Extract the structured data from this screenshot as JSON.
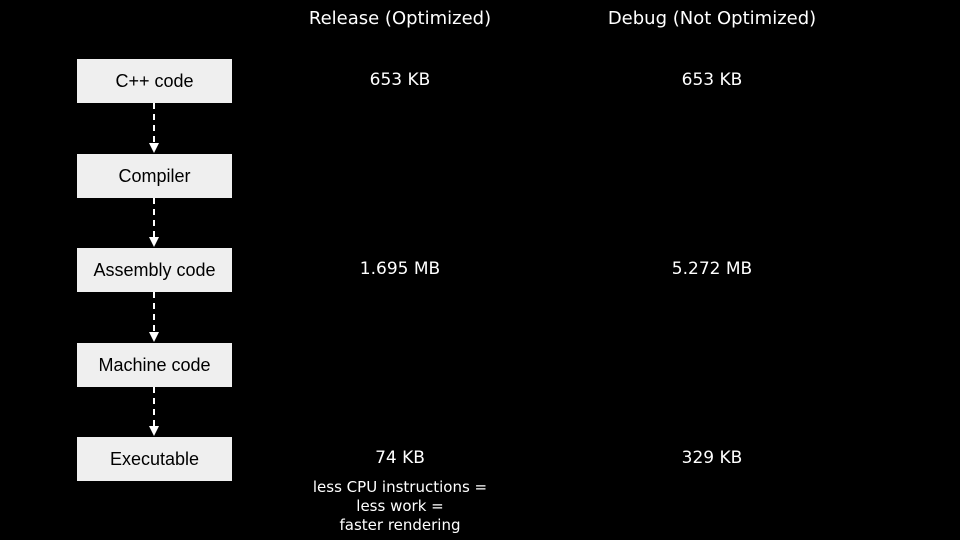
{
  "headers": {
    "release": "Release (Optimized)",
    "debug": "Debug (Not Optimized)"
  },
  "stages": [
    {
      "label": "C++ code",
      "release": "653 KB",
      "debug": "653 KB"
    },
    {
      "label": "Compiler",
      "release": "",
      "debug": ""
    },
    {
      "label": "Assembly code",
      "release": "1.695 MB",
      "debug": "5.272 MB"
    },
    {
      "label": "Machine code",
      "release": "",
      "debug": ""
    },
    {
      "label": "Executable",
      "release": "74 KB",
      "debug": "329 KB"
    }
  ],
  "note": {
    "line1": "less CPU instructions =",
    "line2": "less work =",
    "line3": "faster rendering"
  },
  "colors": {
    "background": "#000000",
    "box": "#efefef",
    "text": "#ffffff",
    "arrow": "#ffffff"
  }
}
